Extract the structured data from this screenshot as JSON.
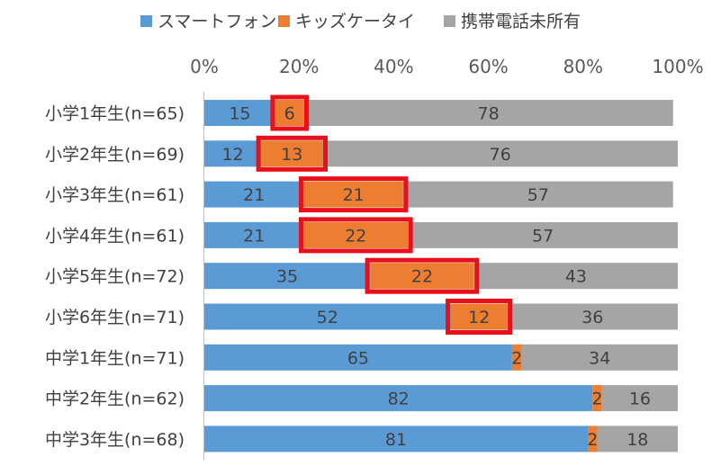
{
  "chart_data": {
    "type": "bar",
    "orientation": "horizontal",
    "stacked": true,
    "percent_scale": true,
    "categories": [
      "小学1年生(n=65)",
      "小学2年生(n=69)",
      "小学3年生(n=61)",
      "小学4年生(n=61)",
      "小学5年生(n=72)",
      "小学6年生(n=71)",
      "中学1年生(n=71)",
      "中学2年生(n=62)",
      "中学3年生(n=68)"
    ],
    "series": [
      {
        "name": "スマートフォン",
        "color": "#5B9BD5",
        "values": [
          15,
          12,
          21,
          21,
          35,
          52,
          65,
          82,
          81
        ]
      },
      {
        "name": "キッズケータイ",
        "color": "#ED7D31",
        "values": [
          6,
          13,
          21,
          22,
          22,
          12,
          2,
          2,
          2
        ]
      },
      {
        "name": "携帯電話未所有",
        "color": "#A5A5A5",
        "values": [
          78,
          76,
          57,
          57,
          43,
          36,
          34,
          16,
          18
        ]
      }
    ],
    "xlim": [
      0,
      100
    ],
    "xticks": [
      "0%",
      "20%",
      "40%",
      "60%",
      "80%",
      "100%"
    ],
    "xtick_values": [
      0,
      20,
      40,
      60,
      80,
      100
    ],
    "axis_position": "top",
    "legend_position": "top",
    "grid": false,
    "highlighted_series": "キッズケータイ",
    "highlighted_categories": [
      0,
      1,
      2,
      3,
      4,
      5
    ],
    "highlight_color": "#E8101C"
  }
}
